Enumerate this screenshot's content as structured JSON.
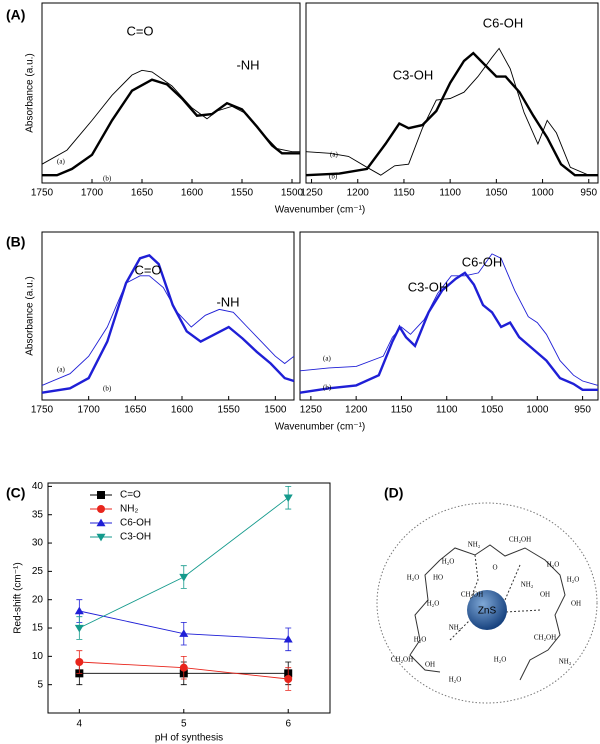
{
  "chart_data": [
    {
      "type": "spectrum",
      "panel_label": "(A)",
      "y_label": "Absorbance (a.u.)",
      "x_label": "Wavenumber (cm⁻¹)",
      "xlim": [
        1750,
        1492
      ],
      "ylim": [
        -5,
        110
      ],
      "xticks": [
        1750,
        1700,
        1650,
        1600,
        1550,
        1500
      ],
      "annotations": [
        "C=O",
        "-NH"
      ],
      "series": [
        {
          "name": "(a)",
          "color": "#000000",
          "style": "thin",
          "x": [
            1750,
            1725,
            1700,
            1680,
            1660,
            1650,
            1640,
            1620,
            1600,
            1585,
            1575,
            1560,
            1545,
            1530,
            1515,
            1500,
            1492
          ],
          "values": [
            7,
            16,
            35,
            51,
            64,
            67,
            66,
            57,
            43,
            36,
            41,
            44,
            39,
            27,
            17,
            15,
            15
          ]
        },
        {
          "name": "(b)",
          "color": "#000000",
          "style": "thick",
          "x": [
            1750,
            1735,
            1720,
            1700,
            1680,
            1660,
            1640,
            1625,
            1610,
            1595,
            1580,
            1565,
            1550,
            1535,
            1520,
            1510,
            1492
          ],
          "values": [
            0,
            0,
            4,
            13,
            35,
            54,
            61,
            58,
            49,
            38,
            39,
            46,
            42,
            31,
            19,
            14,
            14
          ]
        }
      ]
    },
    {
      "type": "spectrum",
      "xlim": [
        1256,
        940
      ],
      "ylim": [
        -5,
        110
      ],
      "xticks": [
        1250,
        1200,
        1150,
        1100,
        1050,
        1000,
        950
      ],
      "annotations": [
        "C3-OH",
        "C6-OH"
      ],
      "series": [
        {
          "name": "(a)",
          "color": "#000000",
          "style": "thin",
          "x": [
            1256,
            1230,
            1210,
            1190,
            1175,
            1160,
            1145,
            1130,
            1115,
            1100,
            1085,
            1070,
            1055,
            1047,
            1035,
            1020,
            1005,
            995,
            985,
            970,
            950,
            940
          ],
          "values": [
            15,
            14,
            12,
            5,
            0,
            6,
            7,
            30,
            48,
            49,
            53,
            63,
            75,
            81,
            68,
            40,
            20,
            35,
            27,
            5,
            0,
            0
          ]
        },
        {
          "name": "(b)",
          "color": "#000000",
          "style": "thick",
          "x": [
            1256,
            1220,
            1190,
            1170,
            1155,
            1145,
            1130,
            1115,
            1100,
            1085,
            1075,
            1065,
            1050,
            1040,
            1025,
            1010,
            995,
            980,
            965,
            950,
            940
          ],
          "values": [
            0,
            1,
            4,
            20,
            33,
            30,
            32,
            41,
            59,
            73,
            78,
            72,
            63,
            63,
            53,
            38,
            24,
            7,
            0,
            0,
            0
          ]
        }
      ]
    },
    {
      "type": "spectrum",
      "panel_label": "(B)",
      "y_label": "Absorbance (a.u.)",
      "x_label": "Wavenumber (cm⁻¹)",
      "xlim": [
        1750,
        1480
      ],
      "ylim": [
        -5,
        110
      ],
      "xticks": [
        1750,
        1700,
        1650,
        1600,
        1550,
        1500
      ],
      "annotations": [
        "C=O",
        "-NH"
      ],
      "series": [
        {
          "name": "(a)",
          "color": "#1f1fd6",
          "style": "thin",
          "x": [
            1750,
            1720,
            1700,
            1680,
            1660,
            1645,
            1635,
            1620,
            1605,
            1590,
            1575,
            1560,
            1545,
            1530,
            1515,
            1500,
            1490,
            1480
          ],
          "values": [
            5,
            13,
            25,
            45,
            75,
            80,
            80,
            72,
            55,
            45,
            53,
            57,
            55,
            45,
            35,
            25,
            20,
            25
          ]
        },
        {
          "name": "(b)",
          "color": "#1f1fd6",
          "style": "thick",
          "x": [
            1750,
            1720,
            1700,
            1680,
            1660,
            1645,
            1635,
            1625,
            1610,
            1595,
            1580,
            1565,
            1550,
            1535,
            1520,
            1505,
            1490,
            1480
          ],
          "values": [
            0,
            3,
            10,
            35,
            75,
            92,
            94,
            88,
            60,
            42,
            35,
            40,
            45,
            37,
            28,
            20,
            10,
            8
          ]
        }
      ]
    },
    {
      "type": "spectrum",
      "xlim": [
        1262,
        933
      ],
      "ylim": [
        -5,
        110
      ],
      "xticks": [
        1250,
        1200,
        1150,
        1100,
        1050,
        1000,
        950
      ],
      "annotations": [
        "C3-OH",
        "C6-OH"
      ],
      "series": [
        {
          "name": "(a)",
          "color": "#1f1fd6",
          "style": "thin",
          "x": [
            1262,
            1230,
            1200,
            1170,
            1160,
            1150,
            1140,
            1125,
            1110,
            1095,
            1080,
            1065,
            1050,
            1040,
            1025,
            1010,
            1000,
            990,
            975,
            960,
            950,
            933
          ],
          "values": [
            15,
            17,
            18,
            25,
            38,
            45,
            40,
            50,
            68,
            80,
            80,
            82,
            95,
            92,
            70,
            52,
            48,
            40,
            22,
            12,
            8,
            5
          ]
        },
        {
          "name": "(b)",
          "color": "#1f1fd6",
          "style": "thick",
          "x": [
            1262,
            1230,
            1200,
            1175,
            1160,
            1152,
            1145,
            1135,
            1120,
            1105,
            1090,
            1080,
            1070,
            1060,
            1050,
            1040,
            1030,
            1020,
            1005,
            990,
            975,
            960,
            950,
            933
          ],
          "values": [
            0,
            3,
            5,
            12,
            35,
            45,
            38,
            32,
            55,
            70,
            78,
            82,
            74,
            60,
            55,
            45,
            48,
            38,
            30,
            22,
            10,
            6,
            2,
            2
          ]
        }
      ]
    },
    {
      "type": "errorline",
      "panel_label": "(C)",
      "x_label": "pH of synthesis",
      "y_label": "Red-shift (cm⁻¹)",
      "xlim": [
        3.7,
        6.4
      ],
      "ylim": [
        0,
        40.6
      ],
      "xticks": [
        4,
        5,
        6
      ],
      "yticks": [
        5,
        10,
        15,
        20,
        25,
        30,
        35,
        40
      ],
      "x": [
        4,
        5,
        6
      ],
      "series": [
        {
          "name": "C=O",
          "color": "#000000",
          "marker": "square",
          "values": [
            7,
            7,
            7
          ],
          "errors": [
            2,
            2,
            2
          ]
        },
        {
          "name": "NH₂",
          "color": "#e8251c",
          "marker": "circle",
          "values": [
            9,
            8,
            6
          ],
          "errors": [
            2,
            2,
            2
          ]
        },
        {
          "name": "C6-OH",
          "color": "#1f1fd6",
          "marker": "triangle-up",
          "values": [
            18,
            14,
            13
          ],
          "errors": [
            2,
            2,
            2
          ]
        },
        {
          "name": "C3-OH",
          "color": "#149a8c",
          "marker": "triangle-down",
          "values": [
            15,
            24,
            38
          ],
          "errors": [
            2,
            2,
            2
          ]
        }
      ]
    }
  ],
  "diagram": {
    "panel_label": "(D)",
    "core": "ZnS",
    "labels": [
      "NH₂",
      "CH₂OH",
      "HO",
      "O",
      "CH₂OH",
      "NH₂",
      "OH",
      "NH₂",
      "CH₂OH",
      "OH",
      "CH₂OH",
      "NH₂",
      "OH",
      "H₂O",
      "H₂O",
      "H₂O",
      "H₂O",
      "H₂O",
      "H₂O",
      "H₂O",
      "H₂O"
    ]
  }
}
